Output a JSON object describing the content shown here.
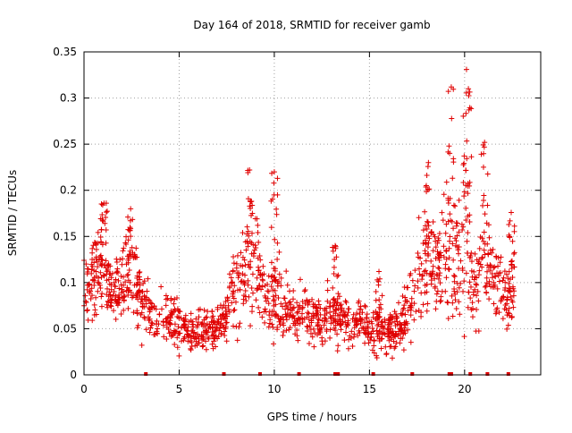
{
  "chart_data": {
    "type": "scatter",
    "title": "Day 164 of 2018, SRMTID for receiver gamb",
    "xlabel": "GPS time / hours",
    "ylabel": "SRMTID / TECUs",
    "xlim": [
      0,
      24
    ],
    "ylim": [
      0,
      0.35
    ],
    "xticks": [
      0,
      5,
      10,
      15,
      20
    ],
    "xtick_labels": [
      "0",
      "5",
      "10",
      "15",
      "20"
    ],
    "yticks": [
      0,
      0.05,
      0.1,
      0.15,
      0.2,
      0.25,
      0.3,
      0.35
    ],
    "ytick_labels": [
      "0",
      "0.05",
      "0.1",
      "0.15",
      "0.2",
      "0.25",
      "0.3",
      "0.35"
    ],
    "grid": true,
    "marker": "+",
    "series": [
      {
        "name": "SRMTID",
        "color": "#e00000",
        "envelope": {
          "x": [
            0,
            0.5,
            1,
            1.5,
            2,
            2.5,
            3,
            3.5,
            4,
            4.5,
            5,
            5.5,
            6,
            6.5,
            7,
            7.5,
            8,
            8.5,
            9,
            9.5,
            10,
            10.5,
            11,
            11.5,
            12,
            12.5,
            13,
            13.5,
            14,
            14.5,
            15,
            15.5,
            16,
            16.5,
            17,
            17.5,
            18,
            18.5,
            19,
            19.5,
            20,
            20.5,
            21,
            21.5,
            22,
            22.6
          ],
          "center": [
            0.095,
            0.105,
            0.12,
            0.085,
            0.1,
            0.11,
            0.075,
            0.07,
            0.065,
            0.06,
            0.055,
            0.045,
            0.045,
            0.05,
            0.05,
            0.065,
            0.1,
            0.12,
            0.13,
            0.085,
            0.085,
            0.07,
            0.07,
            0.065,
            0.06,
            0.06,
            0.065,
            0.06,
            0.055,
            0.055,
            0.05,
            0.05,
            0.045,
            0.05,
            0.07,
            0.11,
            0.12,
            0.11,
            0.14,
            0.11,
            0.14,
            0.1,
            0.12,
            0.11,
            0.085,
            0.09
          ],
          "spread": [
            0.03,
            0.035,
            0.045,
            0.03,
            0.04,
            0.045,
            0.03,
            0.025,
            0.025,
            0.025,
            0.025,
            0.02,
            0.02,
            0.02,
            0.02,
            0.025,
            0.04,
            0.05,
            0.055,
            0.035,
            0.045,
            0.03,
            0.025,
            0.025,
            0.025,
            0.025,
            0.025,
            0.025,
            0.02,
            0.02,
            0.02,
            0.025,
            0.02,
            0.02,
            0.035,
            0.045,
            0.05,
            0.05,
            0.06,
            0.06,
            0.08,
            0.045,
            0.05,
            0.04,
            0.035,
            0.035
          ]
        },
        "peaks": [
          {
            "x": 1.05,
            "y": 0.186
          },
          {
            "x": 2.45,
            "y": 0.18
          },
          {
            "x": 8.7,
            "y": 0.222
          },
          {
            "x": 10.0,
            "y": 0.22
          },
          {
            "x": 13.2,
            "y": 0.14
          },
          {
            "x": 15.5,
            "y": 0.112
          },
          {
            "x": 18.1,
            "y": 0.23
          },
          {
            "x": 19.3,
            "y": 0.312
          },
          {
            "x": 20.1,
            "y": 0.331
          },
          {
            "x": 20.2,
            "y": 0.31
          },
          {
            "x": 21.05,
            "y": 0.252
          },
          {
            "x": 22.45,
            "y": 0.176
          }
        ],
        "zero_markers_x": [
          3.25,
          7.35,
          9.25,
          11.3,
          13.2,
          13.35,
          15.2,
          17.25,
          19.2,
          19.3,
          20.3,
          21.2,
          22.3
        ]
      }
    ]
  }
}
